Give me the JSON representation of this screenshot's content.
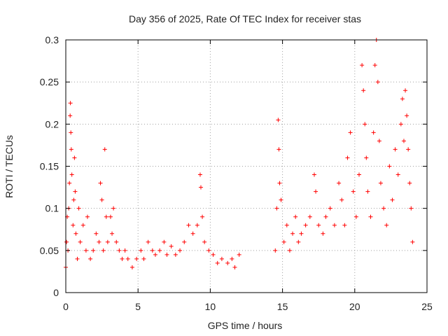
{
  "chart_data": {
    "type": "scatter",
    "title": "Day 356 of 2025, Rate Of TEC Index for receiver stas",
    "xlabel": "GPS time / hours",
    "ylabel": "ROTI / TECUs",
    "xlim": [
      0,
      25
    ],
    "ylim": [
      0,
      0.3
    ],
    "x_ticks": [
      0,
      5,
      10,
      15,
      20,
      25
    ],
    "x_tick_labels": [
      "0",
      "5",
      "10",
      "15",
      "20",
      "25"
    ],
    "y_ticks": [
      0,
      0.05,
      0.1,
      0.15,
      0.2,
      0.25,
      0.3
    ],
    "y_tick_labels": [
      "0",
      "0.05",
      "0.1",
      "0.15",
      "0.2",
      "0.25",
      "0.3"
    ],
    "grid": true,
    "marker": "plus",
    "color": "#ff0000",
    "series": [
      {
        "points": [
          [
            0.0,
            0.03
          ],
          [
            0.05,
            0.06
          ],
          [
            0.1,
            0.09
          ],
          [
            0.15,
            0.05
          ],
          [
            0.2,
            0.1
          ],
          [
            0.25,
            0.13
          ],
          [
            0.3,
            0.21
          ],
          [
            0.32,
            0.225
          ],
          [
            0.35,
            0.19
          ],
          [
            0.38,
            0.17
          ],
          [
            0.42,
            0.14
          ],
          [
            0.5,
            0.08
          ],
          [
            0.55,
            0.11
          ],
          [
            0.6,
            0.16
          ],
          [
            0.65,
            0.12
          ],
          [
            0.7,
            0.07
          ],
          [
            0.8,
            0.04
          ],
          [
            0.9,
            0.1
          ],
          [
            1.0,
            0.06
          ],
          [
            1.2,
            0.08
          ],
          [
            1.4,
            0.05
          ],
          [
            1.5,
            0.09
          ],
          [
            1.7,
            0.04
          ],
          [
            1.9,
            0.05
          ],
          [
            2.1,
            0.07
          ],
          [
            2.3,
            0.06
          ],
          [
            2.4,
            0.13
          ],
          [
            2.5,
            0.11
          ],
          [
            2.6,
            0.05
          ],
          [
            2.7,
            0.17
          ],
          [
            2.8,
            0.09
          ],
          [
            2.9,
            0.06
          ],
          [
            3.1,
            0.09
          ],
          [
            3.2,
            0.07
          ],
          [
            3.3,
            0.1
          ],
          [
            3.5,
            0.06
          ],
          [
            3.7,
            0.05
          ],
          [
            3.9,
            0.04
          ],
          [
            4.1,
            0.05
          ],
          [
            4.3,
            0.04
          ],
          [
            4.6,
            0.03
          ],
          [
            4.9,
            0.04
          ],
          [
            5.2,
            0.05
          ],
          [
            5.4,
            0.04
          ],
          [
            5.7,
            0.06
          ],
          [
            6.0,
            0.05
          ],
          [
            6.2,
            0.045
          ],
          [
            6.5,
            0.05
          ],
          [
            6.8,
            0.06
          ],
          [
            7.0,
            0.045
          ],
          [
            7.3,
            0.055
          ],
          [
            7.6,
            0.045
          ],
          [
            7.9,
            0.05
          ],
          [
            8.2,
            0.06
          ],
          [
            8.5,
            0.08
          ],
          [
            8.8,
            0.07
          ],
          [
            9.1,
            0.08
          ],
          [
            9.3,
            0.14
          ],
          [
            9.35,
            0.125
          ],
          [
            9.45,
            0.09
          ],
          [
            9.6,
            0.06
          ],
          [
            9.9,
            0.05
          ],
          [
            10.2,
            0.045
          ],
          [
            10.5,
            0.035
          ],
          [
            10.8,
            0.04
          ],
          [
            11.2,
            0.035
          ],
          [
            11.5,
            0.04
          ],
          [
            11.7,
            0.03
          ],
          [
            12.0,
            0.045
          ],
          [
            14.5,
            0.05
          ],
          [
            14.6,
            0.1
          ],
          [
            14.7,
            0.205
          ],
          [
            14.75,
            0.17
          ],
          [
            14.8,
            0.13
          ],
          [
            14.9,
            0.11
          ],
          [
            15.1,
            0.06
          ],
          [
            15.3,
            0.08
          ],
          [
            15.5,
            0.05
          ],
          [
            15.7,
            0.07
          ],
          [
            15.9,
            0.09
          ],
          [
            16.1,
            0.06
          ],
          [
            16.3,
            0.07
          ],
          [
            16.6,
            0.08
          ],
          [
            16.9,
            0.09
          ],
          [
            17.2,
            0.14
          ],
          [
            17.3,
            0.12
          ],
          [
            17.5,
            0.08
          ],
          [
            17.8,
            0.07
          ],
          [
            18.0,
            0.09
          ],
          [
            18.3,
            0.1
          ],
          [
            18.6,
            0.08
          ],
          [
            18.9,
            0.13
          ],
          [
            19.1,
            0.11
          ],
          [
            19.3,
            0.08
          ],
          [
            19.5,
            0.16
          ],
          [
            19.7,
            0.19
          ],
          [
            19.9,
            0.12
          ],
          [
            20.1,
            0.09
          ],
          [
            20.3,
            0.14
          ],
          [
            20.5,
            0.27
          ],
          [
            20.6,
            0.24
          ],
          [
            20.7,
            0.2
          ],
          [
            20.8,
            0.16
          ],
          [
            20.9,
            0.12
          ],
          [
            21.1,
            0.09
          ],
          [
            21.3,
            0.19
          ],
          [
            21.4,
            0.27
          ],
          [
            21.5,
            0.3
          ],
          [
            21.6,
            0.25
          ],
          [
            21.7,
            0.18
          ],
          [
            21.8,
            0.13
          ],
          [
            22.0,
            0.1
          ],
          [
            22.2,
            0.08
          ],
          [
            22.4,
            0.15
          ],
          [
            22.6,
            0.11
          ],
          [
            22.8,
            0.17
          ],
          [
            23.0,
            0.14
          ],
          [
            23.2,
            0.2
          ],
          [
            23.3,
            0.23
          ],
          [
            23.4,
            0.18
          ],
          [
            23.5,
            0.24
          ],
          [
            23.6,
            0.21
          ],
          [
            23.7,
            0.17
          ],
          [
            23.8,
            0.13
          ],
          [
            23.9,
            0.1
          ],
          [
            24.0,
            0.06
          ]
        ]
      }
    ]
  }
}
